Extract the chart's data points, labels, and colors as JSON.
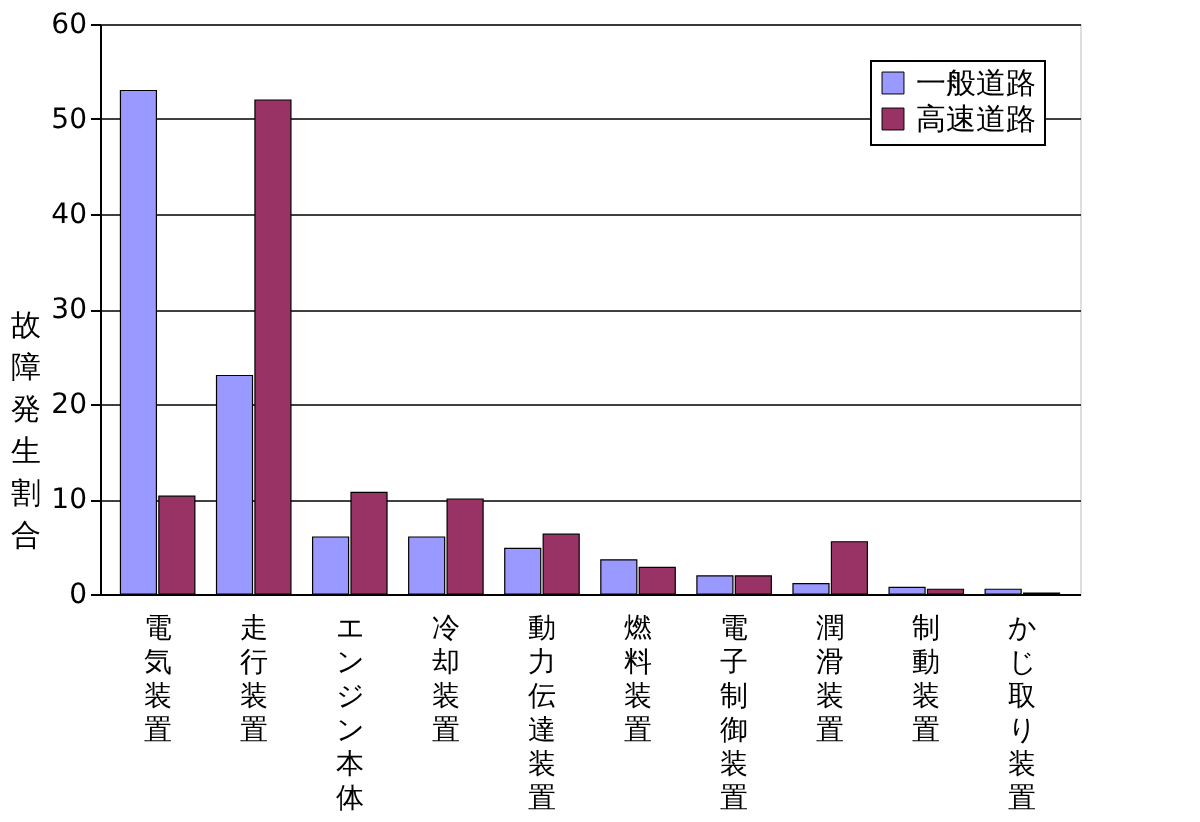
{
  "chart_data": {
    "type": "bar",
    "ylabel": "故障発生割合",
    "categories": [
      "電気装置",
      "走行装置",
      "エンジン本体",
      "冷却装置",
      "動力伝達装置",
      "燃料装置",
      "電子制御装置",
      "潤滑装置",
      "制動装置",
      "かじ取り装置"
    ],
    "series": [
      {
        "name": "一般道路",
        "color": "#9999ff",
        "values": [
          53,
          23,
          6,
          6,
          4.8,
          3.6,
          1.9,
          1.1,
          0.7,
          0.5
        ]
      },
      {
        "name": "高速道路",
        "color": "#993366",
        "values": [
          10.3,
          52,
          10.7,
          10,
          6.3,
          2.8,
          1.9,
          5.5,
          0.5,
          0.1
        ]
      }
    ],
    "ylim": [
      0,
      60
    ],
    "yticks": [
      0,
      10,
      20,
      30,
      40,
      50,
      60
    ],
    "grid": "y",
    "legend": "top right"
  }
}
